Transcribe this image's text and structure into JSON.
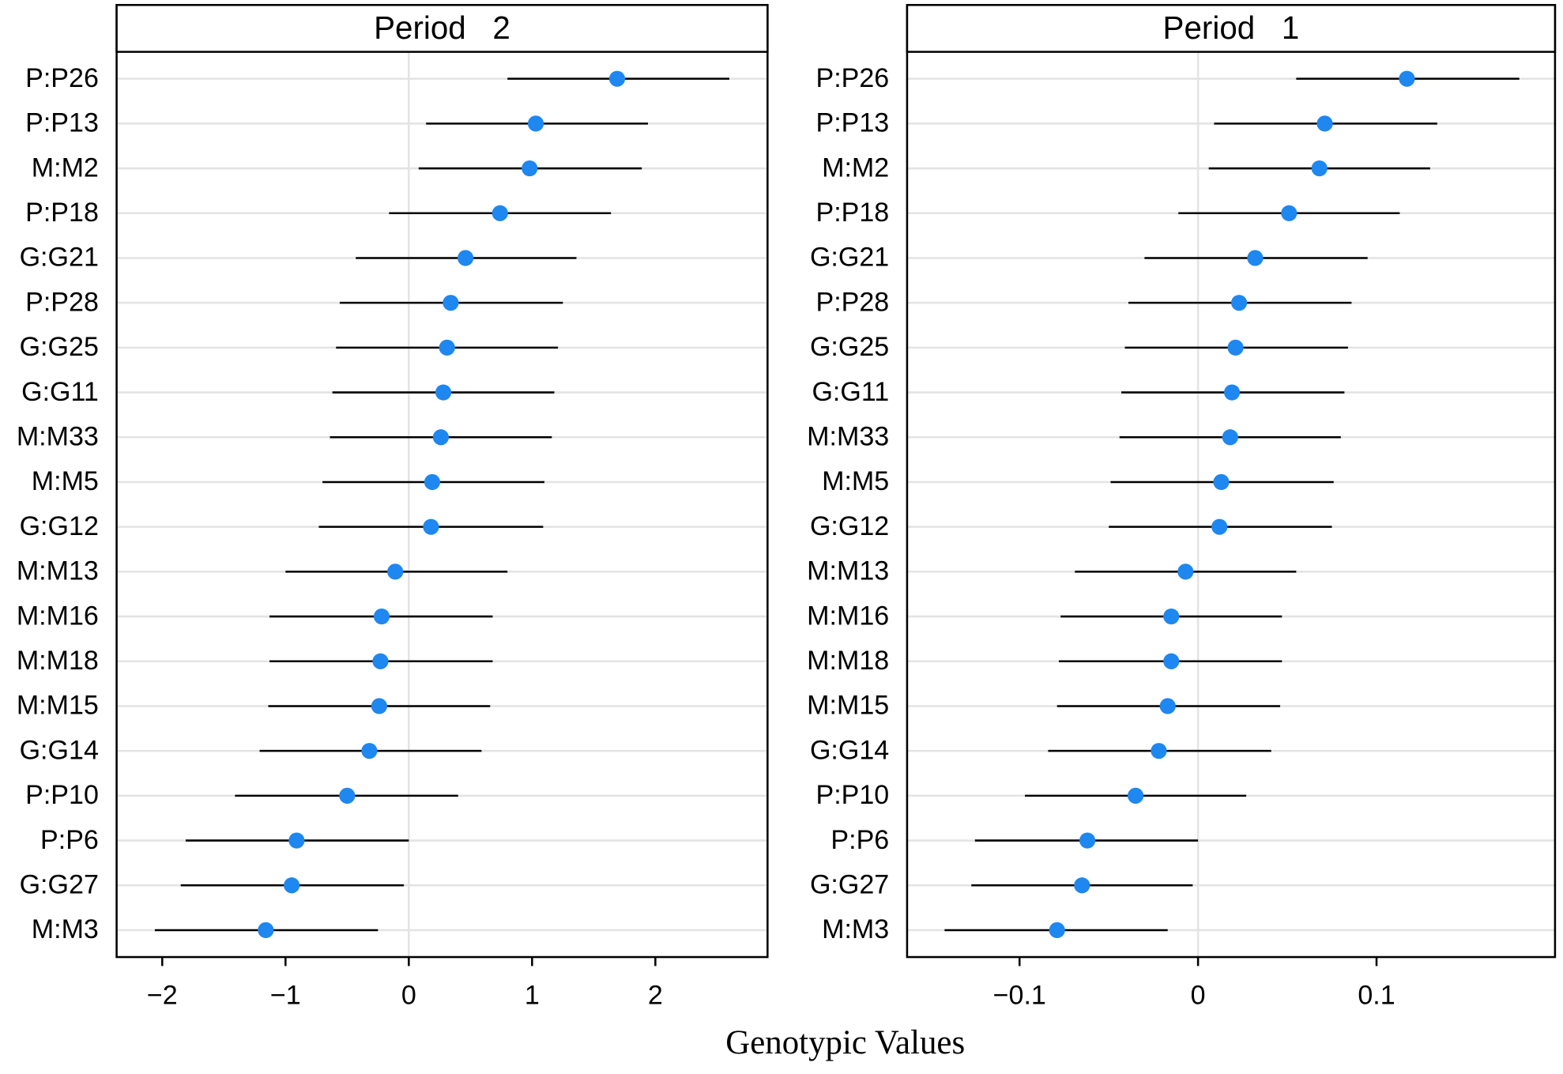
{
  "x_label": "Genotypic Values",
  "chart_data": [
    {
      "type": "dot",
      "title": "Period   2",
      "categories": [
        "P:P26",
        "P:P13",
        "M:M2",
        "P:P18",
        "G:G21",
        "P:P28",
        "G:G25",
        "G:G11",
        "M:M33",
        "M:M5",
        "G:G12",
        "M:M13",
        "M:M16",
        "M:M18",
        "M:M15",
        "G:G14",
        "P:P10",
        "P:P6",
        "G:G27",
        "M:M3"
      ],
      "series": [
        {
          "color": "#1e87f0",
          "values": [
            1.69,
            1.03,
            0.98,
            0.74,
            0.46,
            0.34,
            0.31,
            0.28,
            0.26,
            0.19,
            0.18,
            -0.11,
            -0.22,
            -0.23,
            -0.24,
            -0.32,
            -0.5,
            -0.91,
            -0.95,
            -1.16
          ],
          "lower": [
            0.8,
            0.14,
            0.08,
            -0.16,
            -0.43,
            -0.56,
            -0.59,
            -0.62,
            -0.64,
            -0.7,
            -0.73,
            -1.0,
            -1.13,
            -1.13,
            -1.14,
            -1.21,
            -1.41,
            -1.81,
            -1.85,
            -2.06
          ],
          "upper": [
            2.6,
            1.94,
            1.89,
            1.64,
            1.36,
            1.25,
            1.21,
            1.18,
            1.16,
            1.1,
            1.09,
            0.8,
            0.68,
            0.68,
            0.66,
            0.59,
            0.4,
            0.0,
            -0.04,
            -0.25
          ]
        }
      ],
      "xlim": [
        -2.37,
        2.91
      ],
      "xticks": [
        {
          "value": -2,
          "label": "−2"
        },
        {
          "value": -1,
          "label": "−1"
        },
        0,
        1,
        2
      ],
      "grid": true
    },
    {
      "type": "dot",
      "title": "Period   1",
      "categories": [
        "P:P26",
        "P:P13",
        "M:M2",
        "P:P18",
        "G:G21",
        "P:P28",
        "G:G25",
        "G:G11",
        "M:M33",
        "M:M5",
        "G:G12",
        "M:M13",
        "M:M16",
        "M:M18",
        "M:M15",
        "G:G14",
        "P:P10",
        "P:P6",
        "G:G27",
        "M:M3"
      ],
      "series": [
        {
          "color": "#1e87f0",
          "values": [
            0.117,
            0.071,
            0.068,
            0.051,
            0.032,
            0.023,
            0.021,
            0.019,
            0.018,
            0.013,
            0.012,
            -0.007,
            -0.015,
            -0.015,
            -0.017,
            -0.022,
            -0.035,
            -0.062,
            -0.065,
            -0.079
          ],
          "lower": [
            0.055,
            0.009,
            0.006,
            -0.011,
            -0.03,
            -0.039,
            -0.041,
            -0.043,
            -0.044,
            -0.049,
            -0.05,
            -0.069,
            -0.077,
            -0.078,
            -0.079,
            -0.084,
            -0.097,
            -0.125,
            -0.127,
            -0.142
          ],
          "upper": [
            0.18,
            0.134,
            0.13,
            0.113,
            0.095,
            0.086,
            0.084,
            0.082,
            0.08,
            0.076,
            0.075,
            0.055,
            0.047,
            0.047,
            0.046,
            0.041,
            0.027,
            0.0,
            -0.003,
            -0.017
          ]
        }
      ],
      "xlim": [
        -0.163,
        0.2
      ],
      "xticks": [
        {
          "value": -0.1,
          "label": "−0.1"
        },
        0,
        0.1
      ],
      "grid": true
    }
  ]
}
